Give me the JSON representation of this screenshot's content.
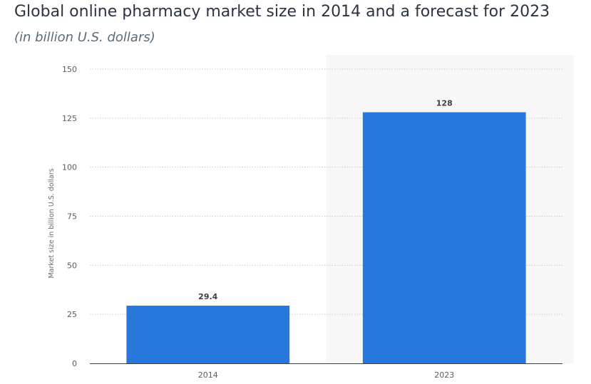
{
  "header": {
    "title": "Global online pharmacy market size in 2014 and a forecast for 2023",
    "subtitle": "(in billion U.S. dollars)"
  },
  "chart_data": {
    "type": "bar",
    "title": "Global online pharmacy market size in 2014 and a forecast for 2023",
    "subtitle": "(in billion U.S. dollars)",
    "xlabel": "",
    "ylabel": "Market size in billion U.S. dollars",
    "categories": [
      "2014",
      "2023"
    ],
    "values": [
      29.4,
      128
    ],
    "data_labels": [
      "29.4",
      "128"
    ],
    "ylim": [
      0,
      150
    ],
    "yticks": [
      0,
      25,
      50,
      75,
      100,
      125,
      150
    ],
    "grid": true,
    "forecast_shading_category": "2023",
    "bar_color": "#2878dc",
    "shade_color": "#f7f7f7",
    "grid_color": "#c9c9c9"
  }
}
